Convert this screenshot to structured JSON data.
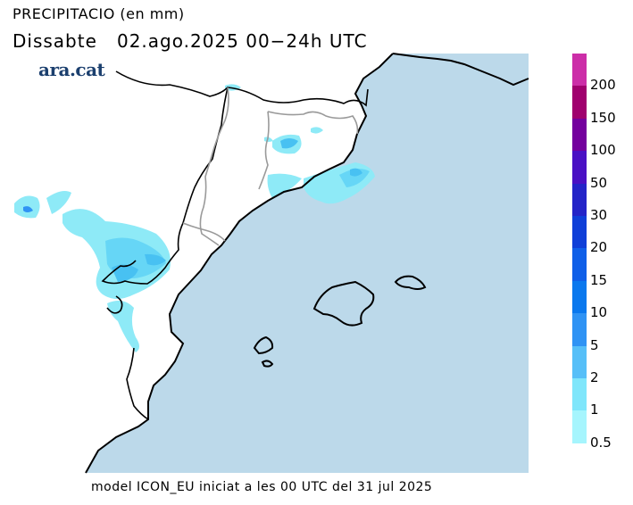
{
  "header": {
    "title": "PRECIPITACIO (en mm)",
    "subtitle": "Dissabte   02.ago.2025 00−24h UTC"
  },
  "brand": {
    "logo_text": "ara.cat",
    "color": "#1b3f6e"
  },
  "footer": {
    "text": "model ICON_EU iniciat a les 00 UTC del 31 jul 2025"
  },
  "colors": {
    "sea": "#bcd9ea",
    "land": "#ffffff",
    "coast": "#000000",
    "border": "#9a9a9a"
  },
  "legend": {
    "items": [
      {
        "label": "200",
        "color": "#cc2ea8"
      },
      {
        "label": "150",
        "color": "#a0006e"
      },
      {
        "label": "100",
        "color": "#74009e"
      },
      {
        "label": "50",
        "color": "#4a10c4"
      },
      {
        "label": "30",
        "color": "#2424c8"
      },
      {
        "label": "20",
        "color": "#0f3fd8"
      },
      {
        "label": "15",
        "color": "#0f5fe8"
      },
      {
        "label": "10",
        "color": "#0a78ee"
      },
      {
        "label": "5",
        "color": "#2f93f4"
      },
      {
        "label": "2",
        "color": "#56bff8"
      },
      {
        "label": "1",
        "color": "#7fe6fb"
      },
      {
        "label": "0.5",
        "color": "#a6f5fd"
      }
    ]
  }
}
